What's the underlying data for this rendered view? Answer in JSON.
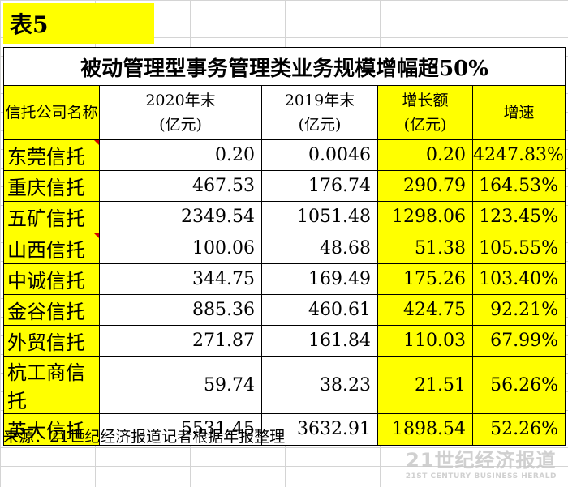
{
  "table_label": "表5",
  "table_title": "被动管理型事务管理类业务规模增幅超50%",
  "headers": [
    {
      "line1": "信托公司名称",
      "line2": ""
    },
    {
      "line1": "2020年末",
      "line2": "(亿元)"
    },
    {
      "line1": "2019年末",
      "line2": "(亿元)"
    },
    {
      "line1": "增长额",
      "line2": "(亿元)"
    },
    {
      "line1": "增速",
      "line2": ""
    }
  ],
  "rows": [
    {
      "name": "东莞信托",
      "y2020": "0.20",
      "y2019": "0.0046",
      "growth": "0.20",
      "rate": "4247.83%"
    },
    {
      "name": "重庆信托",
      "y2020": "467.53",
      "y2019": "176.74",
      "growth": "290.79",
      "rate": "164.53%"
    },
    {
      "name": "五矿信托",
      "y2020": "2349.54",
      "y2019": "1051.48",
      "growth": "1298.06",
      "rate": "123.45%"
    },
    {
      "name": "山西信托",
      "y2020": "100.06",
      "y2019": "48.68",
      "growth": "51.38",
      "rate": "105.55%"
    },
    {
      "name": "中诚信托",
      "y2020": "344.75",
      "y2019": "169.49",
      "growth": "175.26",
      "rate": "103.40%"
    },
    {
      "name": "金谷信托",
      "y2020": "885.36",
      "y2019": "460.61",
      "growth": "424.75",
      "rate": "92.21%"
    },
    {
      "name": "外贸信托",
      "y2020": "271.87",
      "y2019": "161.84",
      "growth": "110.03",
      "rate": "67.99%"
    },
    {
      "name": "杭工商信托",
      "y2020": "59.74",
      "y2019": "38.23",
      "growth": "21.51",
      "rate": "56.26%"
    },
    {
      "name": "英大信托",
      "y2020": "5531.45",
      "y2019": "3632.91",
      "growth": "1898.54",
      "rate": "52.26%"
    }
  ],
  "source_note": "来源：21世纪经济报道记者根据年报整理",
  "watermark": {
    "cn": "21世纪经济报道",
    "en": "21ST CENTURY BUSINESS HERALD"
  },
  "colors": {
    "highlight": "#ffff00",
    "comment_marker": "#d00000",
    "gridline": "#d4d4d4"
  }
}
